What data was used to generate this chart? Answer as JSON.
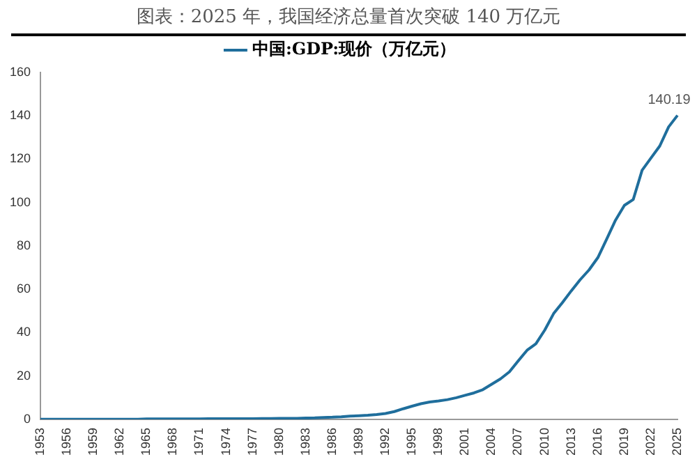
{
  "chart_data": {
    "type": "line",
    "title": "图表：2025 年，我国经济总量首次突破 140 万亿元",
    "categories": [
      "1953",
      null,
      null,
      "1956",
      null,
      null,
      "1959",
      null,
      null,
      "1962",
      null,
      null,
      "1965",
      null,
      null,
      "1968",
      null,
      null,
      "1971",
      null,
      null,
      "1974",
      null,
      null,
      "1977",
      null,
      null,
      "1980",
      null,
      null,
      "1983",
      null,
      null,
      "1986",
      null,
      null,
      "1989",
      null,
      null,
      "1992",
      null,
      null,
      "1995",
      null,
      null,
      "1998",
      null,
      null,
      "2001",
      null,
      null,
      "2004",
      null,
      null,
      "2007",
      null,
      null,
      "2010",
      null,
      null,
      "2013",
      null,
      null,
      "2016",
      null,
      null,
      "2019",
      null,
      null,
      "2022",
      null,
      null,
      "2025"
    ],
    "series": [
      {
        "name": "中国:GDP:现价（万亿元）",
        "color": "#1f6e9c",
        "values": [
          0.1,
          0.1,
          0.1,
          0.1,
          0.1,
          0.1,
          0.1,
          0.1,
          0.1,
          0.1,
          0.1,
          0.1,
          0.2,
          0.2,
          0.2,
          0.2,
          0.2,
          0.2,
          0.2,
          0.3,
          0.3,
          0.3,
          0.3,
          0.3,
          0.3,
          0.4,
          0.4,
          0.5,
          0.5,
          0.5,
          0.6,
          0.7,
          0.9,
          1.0,
          1.2,
          1.5,
          1.7,
          1.9,
          2.2,
          2.7,
          3.6,
          4.9,
          6.1,
          7.2,
          8.0,
          8.5,
          9.1,
          10.0,
          11.1,
          12.2,
          13.7,
          16.2,
          18.7,
          21.9,
          27.0,
          31.9,
          34.9,
          41.2,
          48.8,
          53.9,
          59.3,
          64.4,
          68.9,
          74.6,
          83.2,
          91.9,
          98.7,
          101.4,
          114.9,
          120.5,
          126.1,
          134.9,
          140.19
        ],
        "value_labels": [
          null,
          null,
          null,
          null,
          null,
          null,
          null,
          null,
          null,
          null,
          null,
          null,
          null,
          null,
          null,
          null,
          null,
          null,
          null,
          null,
          null,
          null,
          null,
          null,
          null,
          null,
          null,
          null,
          null,
          null,
          null,
          null,
          null,
          null,
          null,
          null,
          null,
          null,
          null,
          null,
          null,
          null,
          null,
          null,
          null,
          null,
          null,
          null,
          null,
          null,
          null,
          null,
          null,
          null,
          null,
          null,
          null,
          null,
          null,
          null,
          null,
          null,
          null,
          null,
          null,
          null,
          null,
          null,
          null,
          null,
          null,
          null,
          "140.19"
        ]
      }
    ],
    "ylim": [
      0,
      160
    ],
    "yticks": [
      0,
      20,
      40,
      60,
      80,
      100,
      120,
      140,
      160
    ],
    "grid": false,
    "legend": "top",
    "marker": "none",
    "line_style": "solid"
  }
}
